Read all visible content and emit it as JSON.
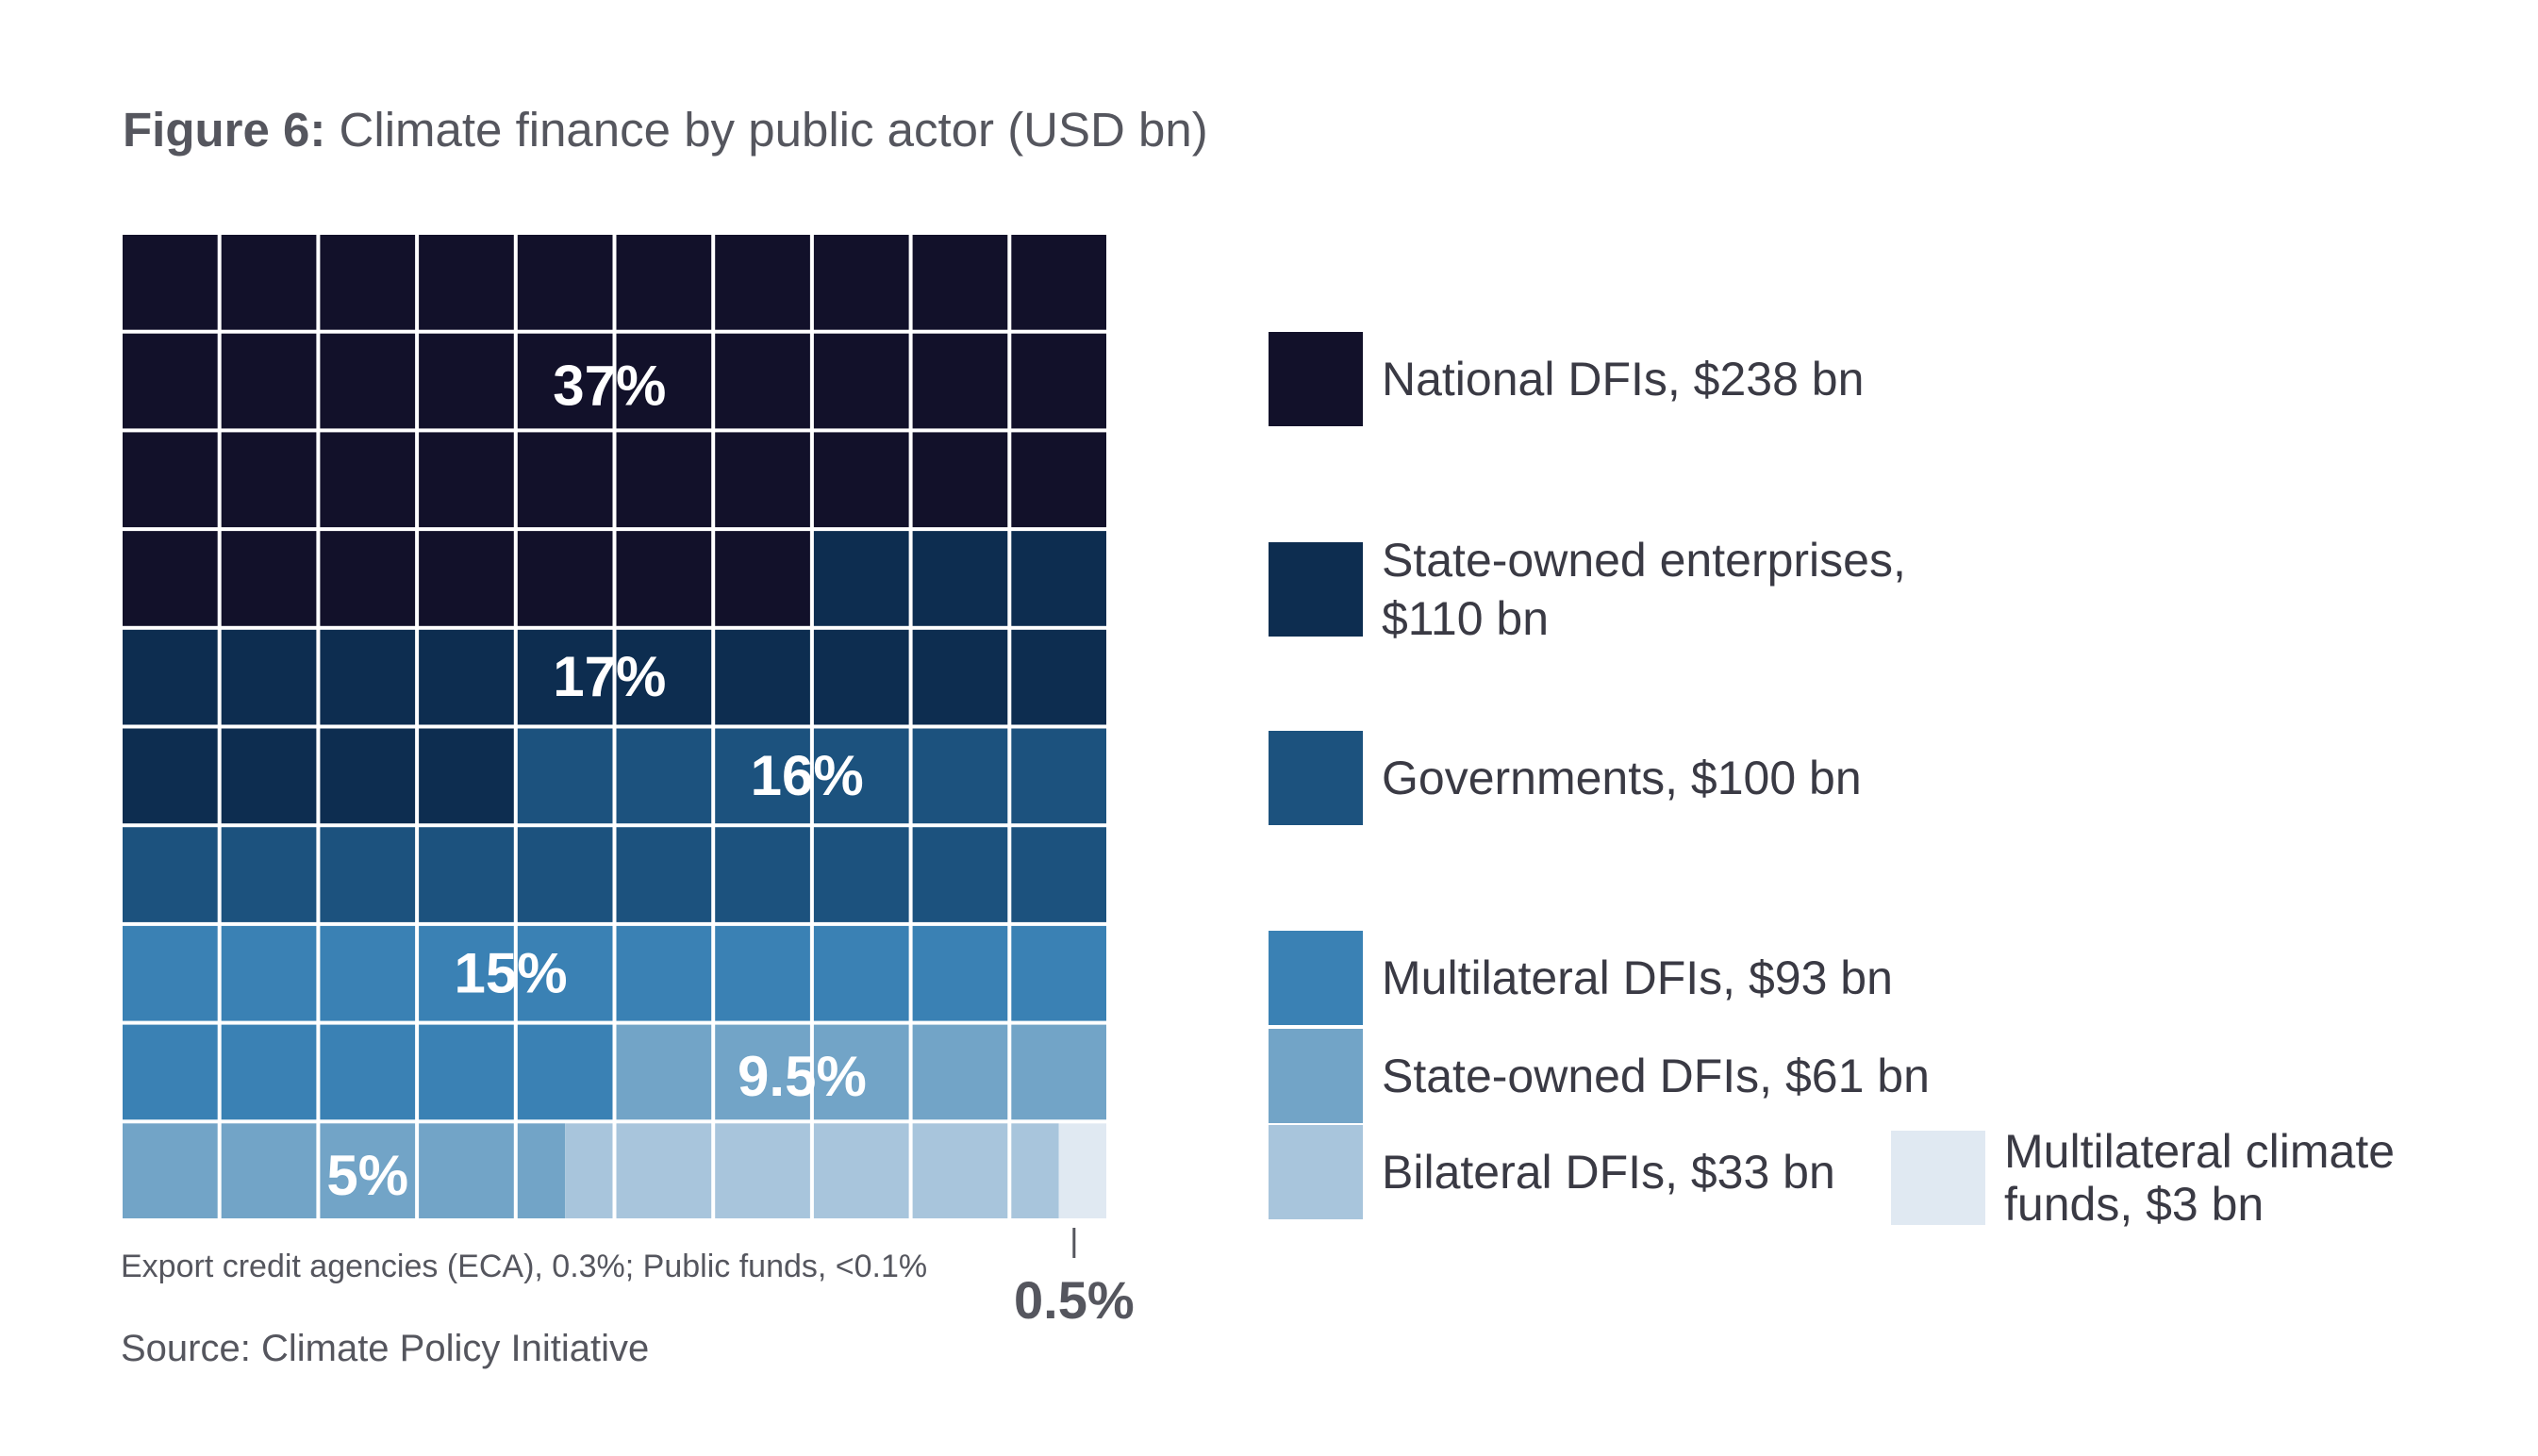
{
  "figure": {
    "title_prefix": "Figure 6:",
    "title_text": " Climate finance by public actor (USD bn)",
    "footnote": "Export credit agencies (ECA), 0.3%; Public funds, <0.1%",
    "source": "Source: Climate Policy Initiative"
  },
  "chart_data": {
    "type": "waffle",
    "title": "Climate finance by public actor (USD bn)",
    "grid": {
      "rows": 10,
      "cols": 10,
      "cell_value_percent": 1
    },
    "categories": [
      {
        "name": "National DFIs",
        "value_bn": 238,
        "percent": 37,
        "label": "37%",
        "legend_line1": "National DFIs, $238 bn",
        "legend_line2": "",
        "color": "#12112a"
      },
      {
        "name": "State-owned enterprises",
        "value_bn": 110,
        "percent": 17,
        "label": "17%",
        "legend_line1": "State-owned enterprises,",
        "legend_line2": "$110 bn",
        "color": "#0d2d50"
      },
      {
        "name": "Governments",
        "value_bn": 100,
        "percent": 16,
        "label": "16%",
        "legend_line1": "Governments, $100 bn",
        "legend_line2": "",
        "color": "#1c527e"
      },
      {
        "name": "Multilateral DFIs",
        "value_bn": 93,
        "percent": 15,
        "label": "15%",
        "legend_line1": "Multilateral DFIs, $93 bn",
        "legend_line2": "",
        "color": "#3a81b4"
      },
      {
        "name": "State-owned DFIs",
        "value_bn": 61,
        "percent": 9.5,
        "label": "9.5%",
        "legend_line1": "State-owned DFIs, $61 bn",
        "legend_line2": "",
        "color": "#72a4c7"
      },
      {
        "name": "Bilateral DFIs",
        "value_bn": 33,
        "percent": 5,
        "label": "5%",
        "legend_line1": "Bilateral DFIs, $33 bn",
        "legend_line2": "",
        "color": "#a8c5dc"
      },
      {
        "name": "Multilateral climate funds",
        "value_bn": 3,
        "percent": 0.5,
        "label": "0.5%",
        "legend_line1": "Multilateral climate",
        "legend_line2": "funds, $3 bn",
        "color": "#e0e9f2"
      }
    ]
  }
}
